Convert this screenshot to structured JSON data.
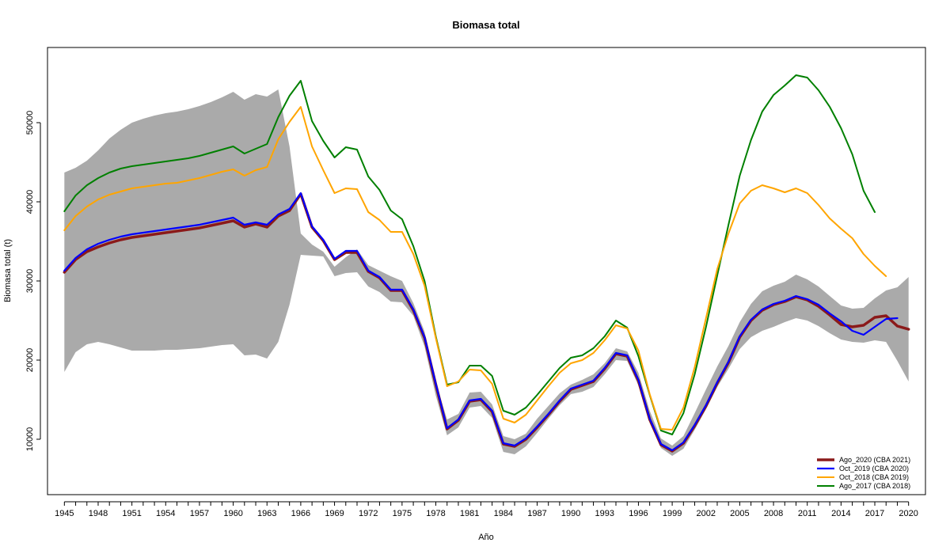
{
  "chart_data": {
    "type": "line",
    "title": "Biomasa total",
    "xlabel": "Año",
    "ylabel": "Biomasa total (t)",
    "xlim": [
      1943.5,
      2021.5
    ],
    "ylim": [
      3000,
      59500
    ],
    "x_ticks": [
      1945,
      1948,
      1951,
      1954,
      1957,
      1960,
      1963,
      1966,
      1969,
      1972,
      1975,
      1978,
      1981,
      1984,
      1987,
      1990,
      1993,
      1996,
      1999,
      2002,
      2005,
      2008,
      2011,
      2014,
      2017,
      2020
    ],
    "y_ticks": [
      10000,
      20000,
      30000,
      40000,
      50000
    ],
    "legend_position": "bottom-right",
    "colors": {
      "band": "#aaaaaa",
      "Ago_2020": "#8b1a1a",
      "Oct_2019": "#0000ff",
      "Oct_2018": "#ffa500",
      "Ago_2017": "#008000"
    },
    "band": {
      "x": [
        1945,
        1946,
        1947,
        1948,
        1949,
        1950,
        1951,
        1952,
        1953,
        1954,
        1955,
        1956,
        1957,
        1958,
        1959,
        1960,
        1961,
        1962,
        1963,
        1964,
        1965,
        1966,
        1967,
        1968,
        1969,
        1970,
        1971,
        1972,
        1973,
        1974,
        1975,
        1976,
        1977,
        1978,
        1979,
        1980,
        1981,
        1982,
        1983,
        1984,
        1985,
        1986,
        1987,
        1988,
        1989,
        1990,
        1991,
        1992,
        1993,
        1994,
        1995,
        1996,
        1997,
        1998,
        1999,
        2000,
        2001,
        2002,
        2003,
        2004,
        2005,
        2006,
        2007,
        2008,
        2009,
        2010,
        2011,
        2012,
        2013,
        2014,
        2015,
        2016,
        2017,
        2018,
        2019,
        2020
      ],
      "upper": [
        43700,
        44300,
        45200,
        46500,
        48000,
        49100,
        50000,
        50500,
        50900,
        51200,
        51400,
        51700,
        52100,
        52600,
        53200,
        53900,
        52900,
        53600,
        53300,
        54200,
        47000,
        36000,
        34600,
        33700,
        31800,
        33000,
        34000,
        32000,
        31300,
        30600,
        30000,
        27200,
        23600,
        17200,
        12500,
        13200,
        15900,
        16000,
        14400,
        10400,
        10000,
        10700,
        12600,
        14200,
        15800,
        16900,
        17500,
        18200,
        19600,
        21500,
        21100,
        18400,
        13600,
        10100,
        9200,
        10400,
        13300,
        16300,
        19200,
        21800,
        24800,
        27100,
        28700,
        29400,
        29900,
        30800,
        30200,
        29300,
        28100,
        26900,
        26500,
        26600,
        27800,
        28800,
        29200,
        30500
      ],
      "lower": [
        18500,
        21000,
        22000,
        22300,
        22000,
        21600,
        21200,
        21200,
        21200,
        21300,
        21300,
        21400,
        21500,
        21700,
        21900,
        22000,
        20600,
        20700,
        20200,
        22300,
        27000,
        33300,
        33200,
        33100,
        30600,
        31000,
        31100,
        29300,
        28600,
        27400,
        27300,
        25600,
        21700,
        15500,
        10500,
        11500,
        14000,
        14200,
        12700,
        8400,
        8100,
        9100,
        10800,
        12600,
        14300,
        15700,
        16000,
        16600,
        18200,
        20000,
        19900,
        16800,
        12200,
        8900,
        7900,
        8800,
        11200,
        13800,
        16600,
        18900,
        21400,
        22900,
        23700,
        24200,
        24800,
        25300,
        25000,
        24300,
        23400,
        22600,
        22300,
        22200,
        22500,
        22300,
        19900,
        17300
      ]
    },
    "series": [
      {
        "name": "Ago_2020 (CBA 2021)",
        "x": [
          1945,
          1946,
          1947,
          1948,
          1949,
          1950,
          1951,
          1952,
          1953,
          1954,
          1955,
          1956,
          1957,
          1958,
          1959,
          1960,
          1961,
          1962,
          1963,
          1964,
          1965,
          1966,
          1967,
          1968,
          1969,
          1970,
          1971,
          1972,
          1973,
          1974,
          1975,
          1976,
          1977,
          1978,
          1979,
          1980,
          1981,
          1982,
          1983,
          1984,
          1985,
          1986,
          1987,
          1988,
          1989,
          1990,
          1991,
          1992,
          1993,
          1994,
          1995,
          1996,
          1997,
          1998,
          1999,
          2000,
          2001,
          2002,
          2003,
          2004,
          2005,
          2006,
          2007,
          2008,
          2009,
          2010,
          2011,
          2012,
          2013,
          2014,
          2015,
          2016,
          2017,
          2018,
          2019,
          2020
        ],
        "values": [
          31100,
          32700,
          33700,
          34300,
          34800,
          35200,
          35500,
          35700,
          35900,
          36100,
          36300,
          36500,
          36700,
          37000,
          37300,
          37600,
          36800,
          37200,
          36800,
          38200,
          38900,
          41000,
          36800,
          35100,
          32700,
          33600,
          33600,
          31200,
          30400,
          28800,
          28800,
          26300,
          22800,
          16900,
          11300,
          12400,
          14800,
          15000,
          13500,
          9400,
          9100,
          10000,
          11500,
          13100,
          14800,
          16300,
          16800,
          17300,
          18900,
          20800,
          20500,
          17400,
          12500,
          9300,
          8500,
          9500,
          11700,
          14200,
          17100,
          19700,
          22900,
          25000,
          26300,
          27000,
          27400,
          28000,
          27600,
          26800,
          25700,
          24500,
          24200,
          24400,
          25400,
          25600,
          24300,
          23900
        ]
      },
      {
        "name": "Oct_2019 (CBA 2020)",
        "x": [
          1945,
          1946,
          1947,
          1948,
          1949,
          1950,
          1951,
          1952,
          1953,
          1954,
          1955,
          1956,
          1957,
          1958,
          1959,
          1960,
          1961,
          1962,
          1963,
          1964,
          1965,
          1966,
          1967,
          1968,
          1969,
          1970,
          1971,
          1972,
          1973,
          1974,
          1975,
          1976,
          1977,
          1978,
          1979,
          1980,
          1981,
          1982,
          1983,
          1984,
          1985,
          1986,
          1987,
          1988,
          1989,
          1990,
          1991,
          1992,
          1993,
          1994,
          1995,
          1996,
          1997,
          1998,
          1999,
          2000,
          2001,
          2002,
          2003,
          2004,
          2005,
          2006,
          2007,
          2008,
          2009,
          2010,
          2011,
          2012,
          2013,
          2014,
          2015,
          2016,
          2017,
          2018,
          2019
        ],
        "values": [
          31300,
          32900,
          34000,
          34700,
          35200,
          35600,
          35900,
          36100,
          36300,
          36500,
          36700,
          36900,
          37100,
          37400,
          37700,
          38000,
          37100,
          37400,
          37100,
          38400,
          39100,
          41100,
          36900,
          35200,
          32800,
          33800,
          33800,
          31300,
          30500,
          28900,
          28900,
          26400,
          22900,
          17000,
          11400,
          12500,
          14900,
          15100,
          13600,
          9500,
          9200,
          10100,
          11600,
          13200,
          14900,
          16400,
          16900,
          17400,
          19000,
          20900,
          20600,
          17500,
          12600,
          9400,
          8600,
          9600,
          11800,
          14300,
          17200,
          19800,
          23000,
          25100,
          26400,
          27100,
          27500,
          28100,
          27700,
          27000,
          25900,
          24900,
          23700,
          23200,
          24200,
          25200,
          25300
        ]
      },
      {
        "name": "Oct_2018 (CBA 2019)",
        "x": [
          1945,
          1946,
          1947,
          1948,
          1949,
          1950,
          1951,
          1952,
          1953,
          1954,
          1955,
          1956,
          1957,
          1958,
          1959,
          1960,
          1961,
          1962,
          1963,
          1964,
          1965,
          1966,
          1967,
          1968,
          1969,
          1970,
          1971,
          1972,
          1973,
          1974,
          1975,
          1976,
          1977,
          1978,
          1979,
          1980,
          1981,
          1982,
          1983,
          1984,
          1985,
          1986,
          1987,
          1988,
          1989,
          1990,
          1991,
          1992,
          1993,
          1994,
          1995,
          1996,
          1997,
          1998,
          1999,
          2000,
          2001,
          2002,
          2003,
          2004,
          2005,
          2006,
          2007,
          2008,
          2009,
          2010,
          2011,
          2012,
          2013,
          2014,
          2015,
          2016,
          2017,
          2018
        ],
        "values": [
          36400,
          38200,
          39400,
          40300,
          40900,
          41300,
          41700,
          41900,
          42100,
          42300,
          42400,
          42700,
          43000,
          43400,
          43800,
          44100,
          43300,
          44000,
          44400,
          47900,
          50100,
          52000,
          47000,
          44000,
          41100,
          41700,
          41600,
          38700,
          37700,
          36200,
          36200,
          33400,
          29400,
          22800,
          16700,
          17300,
          18800,
          18700,
          17000,
          12600,
          12100,
          13100,
          14900,
          16700,
          18400,
          19600,
          20000,
          20900,
          22500,
          24400,
          24000,
          21200,
          15700,
          11300,
          11200,
          14000,
          19100,
          25300,
          31500,
          36000,
          39800,
          41400,
          42100,
          41700,
          41200,
          41700,
          41100,
          39600,
          37900,
          36600,
          35400,
          33400,
          31900,
          30600
        ]
      },
      {
        "name": "Ago_2017 (CBA 2018)",
        "x": [
          1945,
          1946,
          1947,
          1948,
          1949,
          1950,
          1951,
          1952,
          1953,
          1954,
          1955,
          1956,
          1957,
          1958,
          1959,
          1960,
          1961,
          1962,
          1963,
          1964,
          1965,
          1966,
          1967,
          1968,
          1969,
          1970,
          1971,
          1972,
          1973,
          1974,
          1975,
          1976,
          1977,
          1978,
          1979,
          1980,
          1981,
          1982,
          1983,
          1984,
          1985,
          1986,
          1987,
          1988,
          1989,
          1990,
          1991,
          1992,
          1993,
          1994,
          1995,
          1996,
          1997,
          1998,
          1999,
          2000,
          2001,
          2002,
          2003,
          2004,
          2005,
          2006,
          2007,
          2008,
          2009,
          2010,
          2011,
          2012,
          2013,
          2014,
          2015,
          2016,
          2017
        ],
        "values": [
          38800,
          40800,
          42100,
          43000,
          43700,
          44200,
          44500,
          44700,
          44900,
          45100,
          45300,
          45500,
          45800,
          46200,
          46600,
          47000,
          46100,
          46700,
          47300,
          50700,
          53400,
          55300,
          50200,
          47700,
          45600,
          46900,
          46600,
          43200,
          41500,
          38900,
          37800,
          34400,
          30000,
          23000,
          16900,
          17200,
          19300,
          19300,
          18000,
          13600,
          13100,
          14000,
          15600,
          17300,
          19000,
          20300,
          20600,
          21500,
          23000,
          25000,
          24100,
          20500,
          15600,
          11100,
          10600,
          13300,
          18200,
          24200,
          30700,
          37100,
          43300,
          47800,
          51400,
          53500,
          54700,
          56000,
          55700,
          54100,
          52000,
          49300,
          46000,
          41400,
          38700
        ]
      }
    ]
  }
}
